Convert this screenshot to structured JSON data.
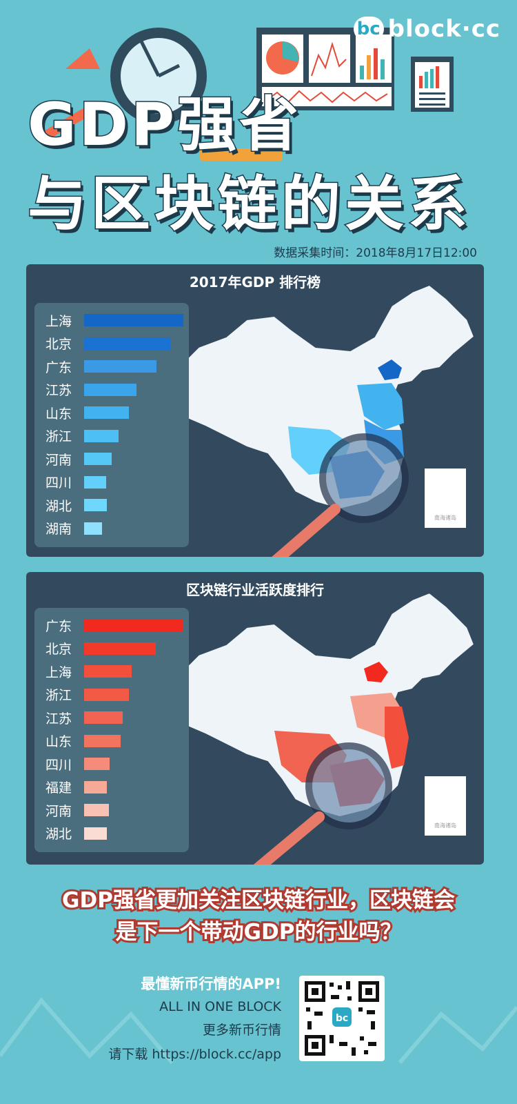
{
  "logo": {
    "badge": "bc",
    "text": "block·cc"
  },
  "title": {
    "line1": "GDP强省",
    "line2": "与区块链的关系"
  },
  "timestamp": "数据采集时间：2018年8月17日12:00",
  "chart_data": [
    {
      "type": "bar",
      "title": "2017年GDP 排行榜",
      "categories": [
        "上海",
        "北京",
        "广东",
        "江苏",
        "山东",
        "浙江",
        "河南",
        "四川",
        "湖北",
        "湖南"
      ],
      "values": [
        10,
        8.7,
        7.3,
        5.3,
        4.5,
        3.5,
        2.8,
        2.2,
        2.3,
        1.8
      ],
      "colors": [
        "#1567c7",
        "#1a72d2",
        "#3a9ae6",
        "#3aa5ea",
        "#43b3f0",
        "#4dbff5",
        "#55c8f8",
        "#62d0fb",
        "#6fd6fc",
        "#8ee0fc"
      ]
    },
    {
      "type": "bar",
      "title": "区块链行业活跃度排行",
      "categories": [
        "广东",
        "北京",
        "上海",
        "浙江",
        "江苏",
        "山东",
        "四川",
        "福建",
        "河南",
        "湖北"
      ],
      "values": [
        10,
        7.2,
        4.8,
        4.5,
        3.9,
        3.7,
        2.6,
        2.3,
        2.5,
        2.3
      ],
      "colors": [
        "#f2291e",
        "#f23a2a",
        "#f2503c",
        "#f25a46",
        "#f26452",
        "#f2745f",
        "#f58b78",
        "#f7a997",
        "#f9c1b4",
        "#fbdcd4"
      ]
    }
  ],
  "question": {
    "line1": "GDP强省更加关注区块链行业，区块链会",
    "line2": "是下一个带动GDP的行业吗？"
  },
  "footer": {
    "line1": "最懂新币行情的APP!",
    "line2": "ALL IN ONE BLOCK",
    "line3": "更多新币行情",
    "line4": "请下载 https://block.cc/app"
  },
  "map_inset": "南海诸岛",
  "colors": {
    "background": "#67c3cf",
    "panel": "#334a5e",
    "gdp_accent": "#1567c7",
    "blockchain_accent": "#f2291e"
  }
}
